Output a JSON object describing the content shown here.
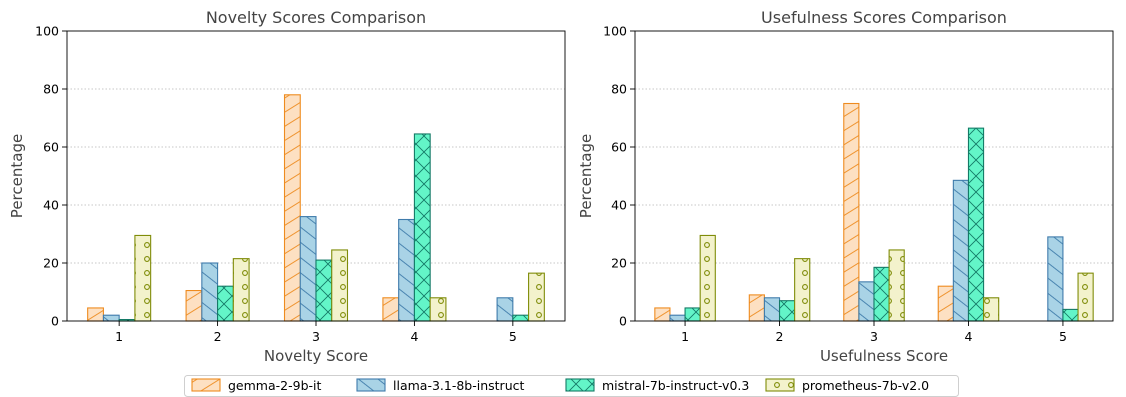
{
  "chart_data": [
    {
      "type": "bar",
      "title": "Novelty Scores Comparison",
      "xlabel": "Novelty Score",
      "ylabel": "Percentage",
      "categories": [
        "1",
        "2",
        "3",
        "4",
        "5"
      ],
      "ylim": [
        0,
        100
      ],
      "yticks": [
        0,
        20,
        40,
        60,
        80,
        100
      ],
      "grid": "y-dotted",
      "series": [
        {
          "name": "gemma-2-9b-it",
          "values": [
            4.5,
            10.5,
            78,
            8,
            0
          ]
        },
        {
          "name": "llama-3.1-8b-instruct",
          "values": [
            2,
            20,
            36,
            35,
            8
          ]
        },
        {
          "name": "mistral-7b-instruct-v0.3",
          "values": [
            0.5,
            12,
            21,
            64.5,
            2
          ]
        },
        {
          "name": "prometheus-7b-v2.0",
          "values": [
            29.5,
            21.5,
            24.5,
            8,
            16.5
          ]
        }
      ]
    },
    {
      "type": "bar",
      "title": "Usefulness Scores Comparison",
      "xlabel": "Usefulness Score",
      "ylabel": "Percentage",
      "categories": [
        "1",
        "2",
        "3",
        "4",
        "5"
      ],
      "ylim": [
        0,
        100
      ],
      "yticks": [
        0,
        20,
        40,
        60,
        80,
        100
      ],
      "grid": "y-dotted",
      "series": [
        {
          "name": "gemma-2-9b-it",
          "values": [
            4.5,
            9,
            75,
            12,
            0
          ]
        },
        {
          "name": "llama-3.1-8b-instruct",
          "values": [
            2,
            8,
            13.5,
            48.5,
            29
          ]
        },
        {
          "name": "mistral-7b-instruct-v0.3",
          "values": [
            4.5,
            7,
            18.5,
            66.5,
            4
          ]
        },
        {
          "name": "prometheus-7b-v2.0",
          "values": [
            29.5,
            21.5,
            24.5,
            8,
            16.5
          ]
        }
      ]
    }
  ],
  "legend": {
    "placement": "bottom-center",
    "entries": [
      "gemma-2-9b-it",
      "llama-3.1-8b-instruct",
      "mistral-7b-instruct-v0.3",
      "prometheus-7b-v2.0"
    ]
  },
  "styles": [
    {
      "fill": "#fde0c2",
      "stroke": "#ee8b1f",
      "hatch": "diagonal"
    },
    {
      "fill": "#a9d3e6",
      "stroke": "#3f7bab",
      "hatch": "backslash"
    },
    {
      "fill": "#63f5c8",
      "stroke": "#147a66",
      "hatch": "cross"
    },
    {
      "fill": "#f3f2cc",
      "stroke": "#7f8c09",
      "hatch": "circles"
    }
  ]
}
